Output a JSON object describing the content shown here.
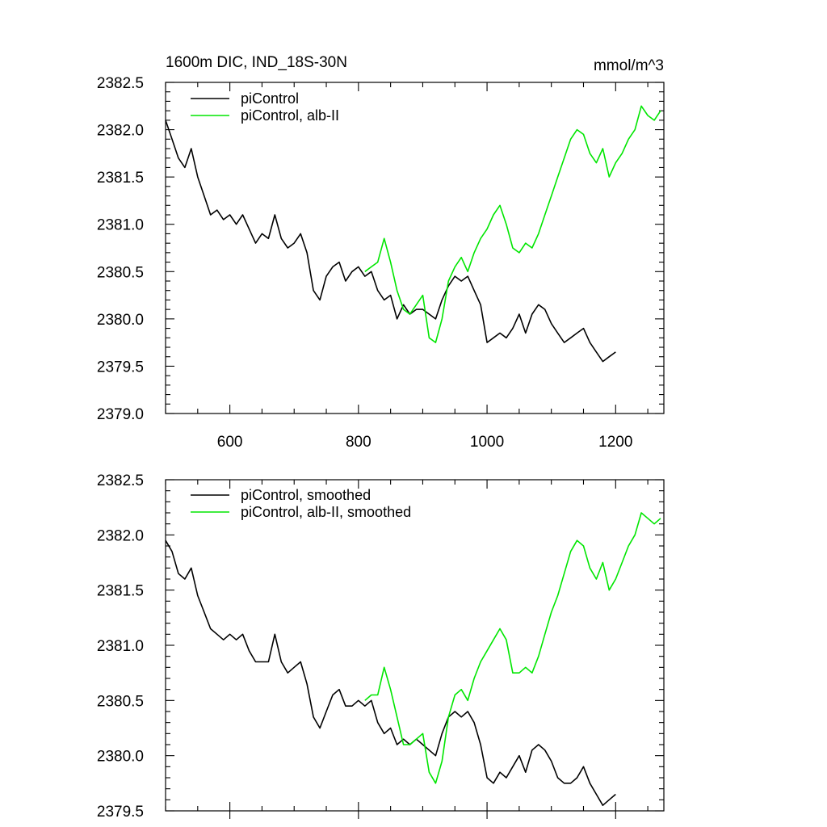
{
  "chart_data": [
    {
      "type": "line",
      "title": "1600m DIC, IND_18S-30N",
      "units": "mmol/m^3",
      "xlim": [
        500,
        1275
      ],
      "ylim": [
        2379.0,
        2382.5
      ],
      "x_ticks": [
        600,
        800,
        1000,
        1200
      ],
      "y_ticks": [
        2379.0,
        2379.5,
        2380.0,
        2380.5,
        2381.0,
        2381.5,
        2382.0,
        2382.5
      ],
      "y_tick_labels": [
        "2379.0",
        "2379.5",
        "2380.0",
        "2380.5",
        "2381.0",
        "2381.5",
        "2382.0",
        "2382.5"
      ],
      "x_tick_labels": [
        "600",
        "800",
        "1000",
        "1200"
      ],
      "legend_position": "top-left",
      "series": [
        {
          "name": "piControl",
          "color": "#000000",
          "x": [
            500,
            510,
            520,
            530,
            540,
            550,
            560,
            570,
            580,
            590,
            600,
            610,
            620,
            630,
            640,
            650,
            660,
            670,
            680,
            690,
            700,
            710,
            720,
            730,
            740,
            750,
            760,
            770,
            780,
            790,
            800,
            810,
            820,
            830,
            840,
            850,
            860,
            870,
            880,
            890,
            900,
            910,
            920,
            930,
            940,
            950,
            960,
            970,
            980,
            990,
            1000,
            1010,
            1020,
            1030,
            1040,
            1050,
            1060,
            1070,
            1080,
            1090,
            1100,
            1110,
            1120,
            1130,
            1140,
            1150,
            1160,
            1170,
            1180,
            1190,
            1200
          ],
          "values": [
            2382.1,
            2381.9,
            2381.7,
            2381.6,
            2381.8,
            2381.5,
            2381.3,
            2381.1,
            2381.15,
            2381.05,
            2381.1,
            2381.0,
            2381.1,
            2380.95,
            2380.8,
            2380.9,
            2380.85,
            2381.1,
            2380.85,
            2380.75,
            2380.8,
            2380.9,
            2380.7,
            2380.3,
            2380.2,
            2380.45,
            2380.55,
            2380.6,
            2380.4,
            2380.5,
            2380.55,
            2380.45,
            2380.5,
            2380.3,
            2380.2,
            2380.25,
            2380.0,
            2380.15,
            2380.05,
            2380.1,
            2380.1,
            2380.05,
            2380.0,
            2380.2,
            2380.35,
            2380.45,
            2380.4,
            2380.45,
            2380.3,
            2380.15,
            2379.75,
            2379.8,
            2379.85,
            2379.8,
            2379.9,
            2380.05,
            2379.85,
            2380.05,
            2380.15,
            2380.1,
            2379.95,
            2379.85,
            2379.75,
            2379.8,
            2379.85,
            2379.9,
            2379.75,
            2379.65,
            2379.55,
            2379.6,
            2379.65
          ]
        },
        {
          "name": "piControl, alb-II",
          "color": "#00e600",
          "x": [
            810,
            820,
            830,
            840,
            850,
            860,
            870,
            880,
            890,
            900,
            910,
            920,
            930,
            940,
            950,
            960,
            970,
            980,
            990,
            1000,
            1010,
            1020,
            1030,
            1040,
            1050,
            1060,
            1070,
            1080,
            1090,
            1100,
            1110,
            1120,
            1130,
            1140,
            1150,
            1160,
            1170,
            1180,
            1190,
            1200,
            1210,
            1220,
            1230,
            1240,
            1250,
            1260,
            1270
          ],
          "values": [
            2380.5,
            2380.55,
            2380.6,
            2380.85,
            2380.6,
            2380.3,
            2380.1,
            2380.05,
            2380.15,
            2380.25,
            2379.8,
            2379.75,
            2380.0,
            2380.4,
            2380.55,
            2380.65,
            2380.5,
            2380.7,
            2380.85,
            2380.95,
            2381.1,
            2381.2,
            2381.0,
            2380.75,
            2380.7,
            2380.8,
            2380.75,
            2380.9,
            2381.1,
            2381.3,
            2381.5,
            2381.7,
            2381.9,
            2382.0,
            2381.95,
            2381.75,
            2381.65,
            2381.8,
            2381.5,
            2381.65,
            2381.75,
            2381.9,
            2382.0,
            2382.25,
            2382.15,
            2382.1,
            2382.2
          ]
        }
      ]
    },
    {
      "type": "line",
      "xlim": [
        500,
        1275
      ],
      "ylim": [
        2379.5,
        2382.5
      ],
      "x_ticks": [
        600,
        800,
        1000,
        1200
      ],
      "y_ticks": [
        2379.5,
        2380.0,
        2380.5,
        2381.0,
        2381.5,
        2382.0,
        2382.5
      ],
      "y_tick_labels": [
        "2379.5",
        "2380.0",
        "2380.5",
        "2381.0",
        "2381.5",
        "2382.0",
        "2382.5"
      ],
      "legend_position": "top-left",
      "series": [
        {
          "name": "piControl, smoothed",
          "color": "#000000",
          "x": [
            500,
            510,
            520,
            530,
            540,
            550,
            560,
            570,
            580,
            590,
            600,
            610,
            620,
            630,
            640,
            650,
            660,
            670,
            680,
            690,
            700,
            710,
            720,
            730,
            740,
            750,
            760,
            770,
            780,
            790,
            800,
            810,
            820,
            830,
            840,
            850,
            860,
            870,
            880,
            890,
            900,
            910,
            920,
            930,
            940,
            950,
            960,
            970,
            980,
            990,
            1000,
            1010,
            1020,
            1030,
            1040,
            1050,
            1060,
            1070,
            1080,
            1090,
            1100,
            1110,
            1120,
            1130,
            1140,
            1150,
            1160,
            1170,
            1180,
            1190,
            1200
          ],
          "values": [
            2381.95,
            2381.85,
            2381.65,
            2381.6,
            2381.7,
            2381.45,
            2381.3,
            2381.15,
            2381.1,
            2381.05,
            2381.1,
            2381.05,
            2381.1,
            2380.95,
            2380.85,
            2380.85,
            2380.85,
            2381.1,
            2380.85,
            2380.75,
            2380.8,
            2380.85,
            2380.65,
            2380.35,
            2380.25,
            2380.4,
            2380.55,
            2380.6,
            2380.45,
            2380.45,
            2380.5,
            2380.45,
            2380.5,
            2380.3,
            2380.2,
            2380.25,
            2380.1,
            2380.15,
            2380.1,
            2380.15,
            2380.1,
            2380.05,
            2380.0,
            2380.2,
            2380.35,
            2380.4,
            2380.35,
            2380.4,
            2380.3,
            2380.1,
            2379.8,
            2379.75,
            2379.85,
            2379.8,
            2379.9,
            2380.0,
            2379.85,
            2380.05,
            2380.1,
            2380.05,
            2379.95,
            2379.8,
            2379.75,
            2379.75,
            2379.8,
            2379.9,
            2379.75,
            2379.65,
            2379.55,
            2379.6,
            2379.65
          ]
        },
        {
          "name": "piControl, alb-II, smoothed",
          "color": "#00e600",
          "x": [
            810,
            820,
            830,
            840,
            850,
            860,
            870,
            880,
            890,
            900,
            910,
            920,
            930,
            940,
            950,
            960,
            970,
            980,
            990,
            1000,
            1010,
            1020,
            1030,
            1040,
            1050,
            1060,
            1070,
            1080,
            1090,
            1100,
            1110,
            1120,
            1130,
            1140,
            1150,
            1160,
            1170,
            1180,
            1190,
            1200,
            1210,
            1220,
            1230,
            1240,
            1250,
            1260,
            1270
          ],
          "values": [
            2380.5,
            2380.55,
            2380.55,
            2380.8,
            2380.6,
            2380.35,
            2380.1,
            2380.1,
            2380.15,
            2380.2,
            2379.85,
            2379.75,
            2379.95,
            2380.35,
            2380.55,
            2380.6,
            2380.5,
            2380.7,
            2380.85,
            2380.95,
            2381.05,
            2381.15,
            2381.05,
            2380.75,
            2380.75,
            2380.8,
            2380.75,
            2380.9,
            2381.1,
            2381.3,
            2381.45,
            2381.65,
            2381.85,
            2381.95,
            2381.9,
            2381.7,
            2381.6,
            2381.75,
            2381.5,
            2381.6,
            2381.75,
            2381.9,
            2382.0,
            2382.2,
            2382.15,
            2382.1,
            2382.15
          ]
        }
      ]
    }
  ]
}
